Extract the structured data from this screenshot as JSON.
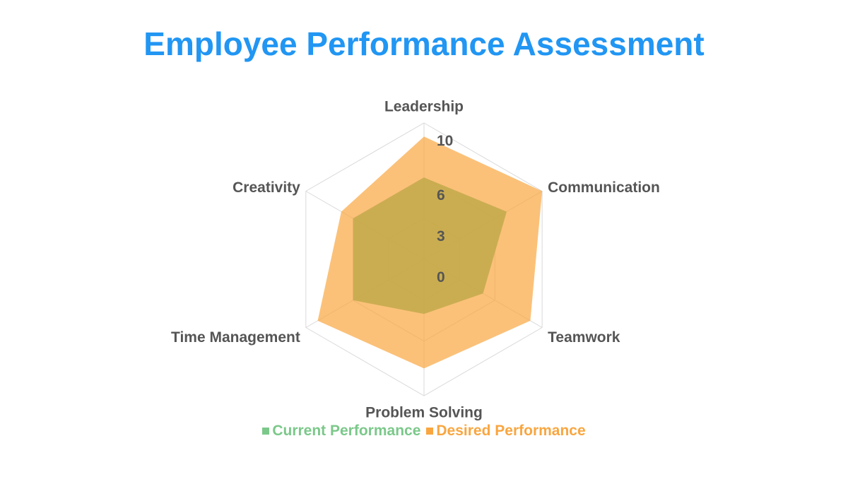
{
  "title": "Employee Performance Assessment",
  "chart_data": {
    "type": "radar",
    "title": "Employee Performance Assessment",
    "categories": [
      "Leadership",
      "Communication",
      "Teamwork",
      "Problem Solving",
      "Time Management",
      "Creativity"
    ],
    "r_ticks": [
      "0",
      "3",
      "6",
      "10"
    ],
    "r_range": [
      0,
      10
    ],
    "series": [
      {
        "name": "Current Performance",
        "values": [
          6,
          7,
          5,
          4,
          6,
          6
        ],
        "color": "#7bc88a"
      },
      {
        "name": "Desired Performance",
        "values": [
          9,
          10,
          9,
          8,
          9,
          7
        ],
        "color": "#f9a640"
      }
    ],
    "grid": true,
    "legend_position": "bottom"
  },
  "colors": {
    "title": "#2196f3",
    "label": "#555555",
    "grid": "#d9d9d9",
    "overlap": "#c2a94a"
  }
}
